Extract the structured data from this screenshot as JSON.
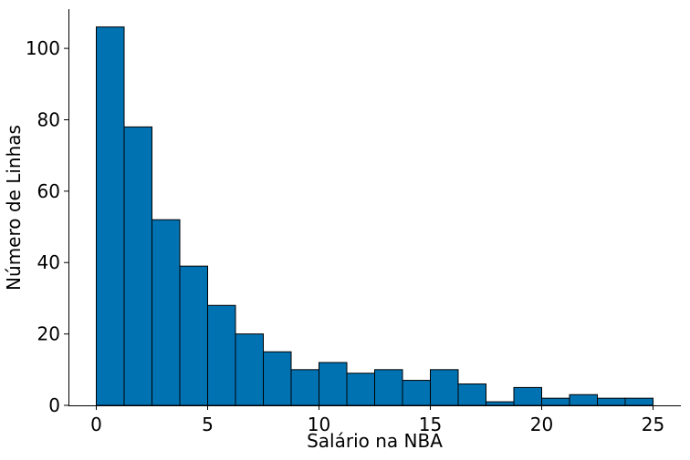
{
  "chart_data": {
    "type": "bar",
    "subtype": "histogram",
    "title": "",
    "xlabel": "Salário na NBA",
    "ylabel": "Número de Linhas",
    "bin_edges": [
      0,
      1.25,
      2.5,
      3.75,
      5,
      6.25,
      7.5,
      8.75,
      10,
      11.25,
      12.5,
      13.75,
      15,
      16.25,
      17.5,
      18.75,
      20,
      21.25,
      22.5,
      23.75,
      25
    ],
    "counts": [
      106,
      78,
      52,
      39,
      28,
      20,
      15,
      10,
      12,
      9,
      10,
      7,
      10,
      6,
      1,
      5,
      2,
      3,
      2,
      2
    ],
    "xlim": [
      -1.25,
      26.25
    ],
    "ylim": [
      0,
      111
    ],
    "xticks": [
      0,
      5,
      10,
      15,
      20,
      25
    ],
    "yticks": [
      0,
      20,
      40,
      60,
      80,
      100
    ],
    "bar_color": "#0072b2",
    "edge_color": "#000000",
    "grid": false,
    "spines": "left-bottom"
  }
}
